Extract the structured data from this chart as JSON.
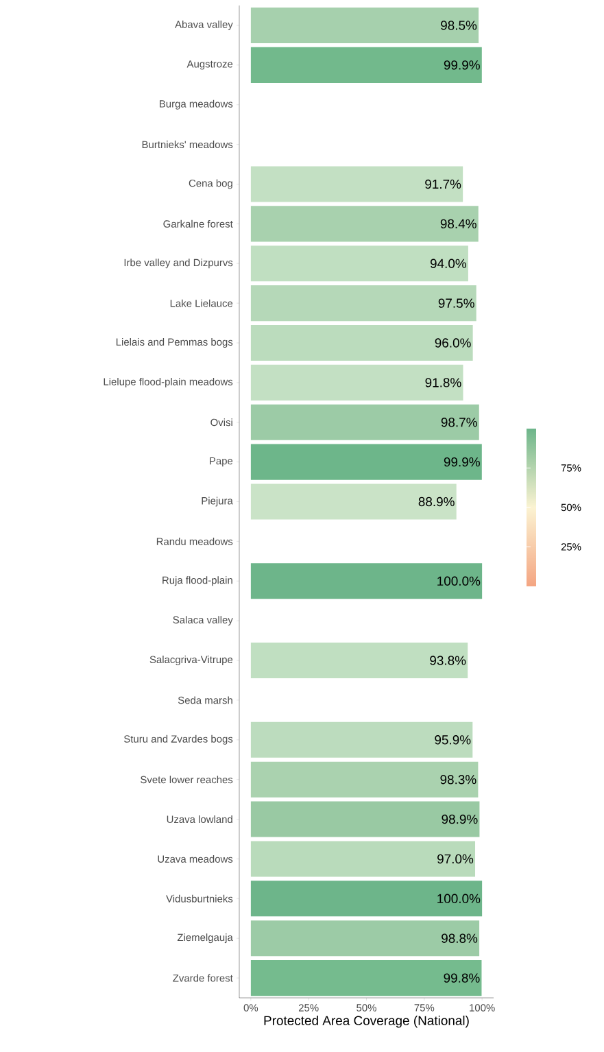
{
  "chart_data": {
    "type": "bar",
    "orientation": "horizontal",
    "xlabel": "Protected Area Coverage (National)",
    "categories": [
      "Abava valley",
      "Augstroze",
      "Burga meadows",
      "Burtnieks' meadows",
      "Cena bog",
      "Garkalne forest",
      "Irbe valley and Dizpurvs",
      "Lake Lielauce",
      "Lielais and Pemmas bogs",
      "Lielupe flood-plain meadows",
      "Ovisi",
      "Pape",
      "Piejura",
      "Randu meadows",
      "Ruja flood-plain",
      "Salaca valley",
      "Salacgriva-Vitrupe",
      "Seda marsh",
      "Sturu and Zvardes bogs",
      "Svete lower reaches",
      "Uzava lowland",
      "Uzava meadows",
      "Vidusburtnieks",
      "Ziemelgauja",
      "Zvarde forest"
    ],
    "values": [
      98.5,
      99.9,
      null,
      null,
      91.7,
      98.4,
      94.0,
      97.5,
      96.0,
      91.8,
      98.7,
      99.9,
      88.9,
      null,
      100.0,
      null,
      93.8,
      null,
      95.9,
      98.3,
      98.9,
      97.0,
      100.0,
      98.8,
      99.8
    ],
    "value_labels": [
      "98.5%",
      "99.9%",
      null,
      null,
      "91.7%",
      "98.4%",
      "94.0%",
      "97.5%",
      "96.0%",
      "91.8%",
      "98.7%",
      "99.9%",
      "88.9%",
      null,
      "100.0%",
      null,
      "93.8%",
      null,
      "95.9%",
      "98.3%",
      "98.9%",
      "97.0%",
      "100.0%",
      "98.8%",
      "99.8%"
    ],
    "colors": [
      "#a6d0ad",
      "#72b98c",
      "#cccccc",
      "#cccccc",
      "#c3e0c3",
      "#a8d1ae",
      "#c0dfc1",
      "#b5d8b8",
      "#bbdcbd",
      "#c3e0c3",
      "#9ccba6",
      "#6db68a",
      "#cae3c7",
      "#cccccc",
      "#6db58a",
      "#cccccc",
      "#c0dfc1",
      "#cccccc",
      "#bcdcbe",
      "#aad2af",
      "#99c9a3",
      "#b9dbbb",
      "#6db58a",
      "#9ccba6",
      "#75bb8e"
    ],
    "xlim": [
      -5,
      105
    ],
    "xticks": [
      {
        "value": 0,
        "label": "0%"
      },
      {
        "value": 25,
        "label": "25%"
      },
      {
        "value": 50,
        "label": "50%"
      },
      {
        "value": 75,
        "label": "75%"
      },
      {
        "value": 100,
        "label": "100%"
      }
    ],
    "clim": [
      0,
      100
    ],
    "cticks": [
      {
        "value": 25,
        "label": "25%"
      },
      {
        "value": 50,
        "label": "50%"
      },
      {
        "value": 75,
        "label": "75%"
      }
    ],
    "grid": false
  }
}
